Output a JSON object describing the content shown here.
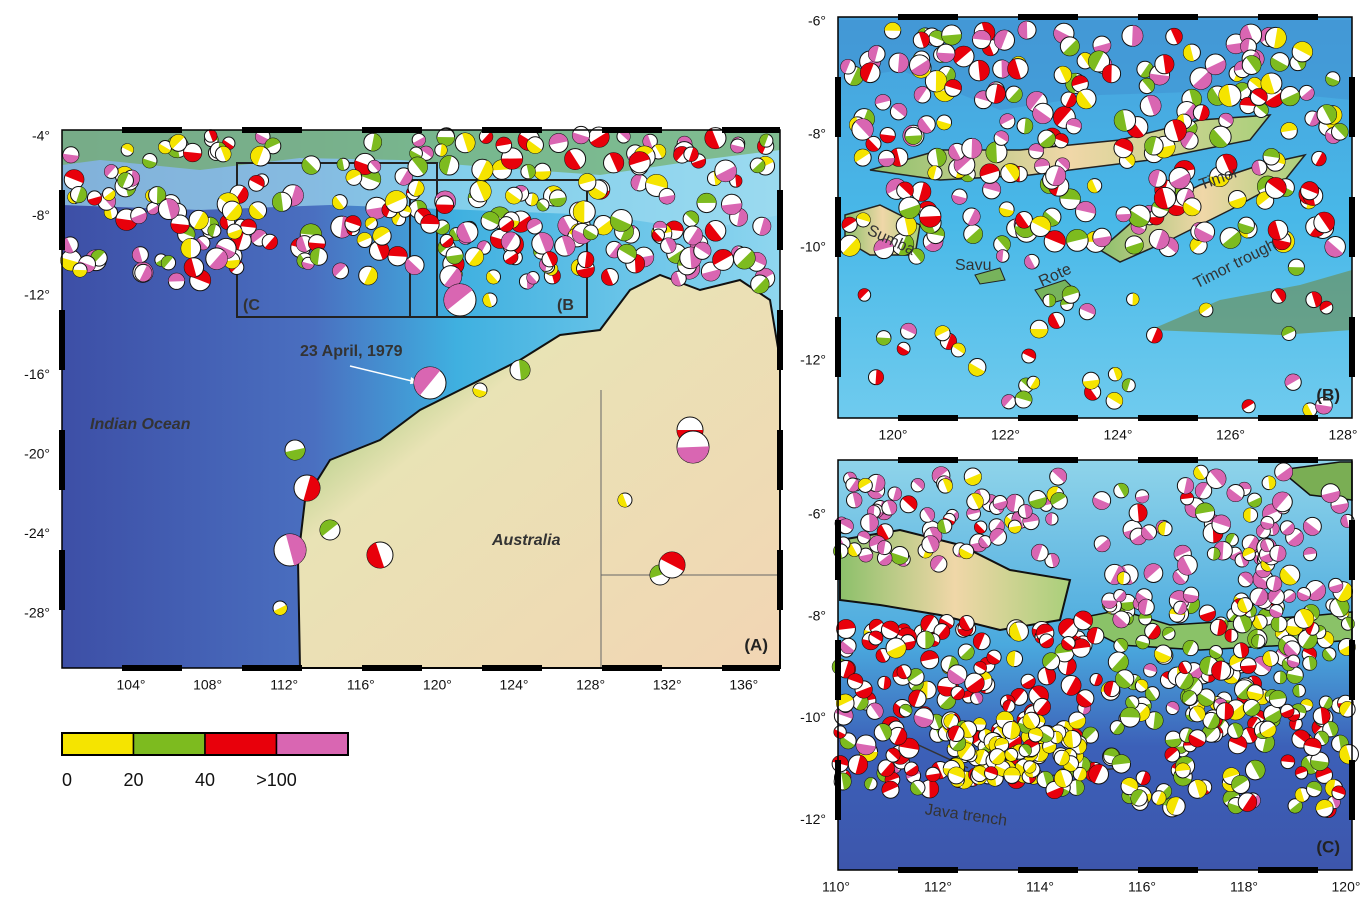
{
  "panels": [
    {
      "label": "(A)",
      "xticks": [
        "104°",
        "108°",
        "112°",
        "116°",
        "120°",
        "124°",
        "128°",
        "132°",
        "136°"
      ],
      "yticks": [
        "-4°",
        "-8°",
        "-12°",
        "-16°",
        "-20°",
        "-24°",
        "-28°"
      ],
      "annotations": [
        "23 April, 1979",
        "Indian Ocean",
        "Australia",
        "(C",
        "(B"
      ]
    },
    {
      "label": "(B)",
      "xticks": [
        "120°",
        "122°",
        "124°",
        "126°",
        "128°"
      ],
      "yticks": [
        "-6°",
        "-8°",
        "-10°",
        "-12°"
      ],
      "annotations": [
        "Sumba",
        "Savu",
        "Rote",
        "Timor",
        "Timor trough"
      ]
    },
    {
      "label": "(C)",
      "xticks": [
        "110°",
        "112°",
        "114°",
        "116°",
        "118°",
        "120°"
      ],
      "yticks": [
        "-6°",
        "-8°",
        "-10°",
        "-12°"
      ],
      "annotations": [
        "Java trench"
      ]
    }
  ],
  "legend": {
    "labels": [
      "0",
      "20",
      "40",
      ">100"
    ],
    "colors": [
      "#f5e400",
      "#7dbb1f",
      "#e8000b",
      "#d966b2"
    ]
  }
}
